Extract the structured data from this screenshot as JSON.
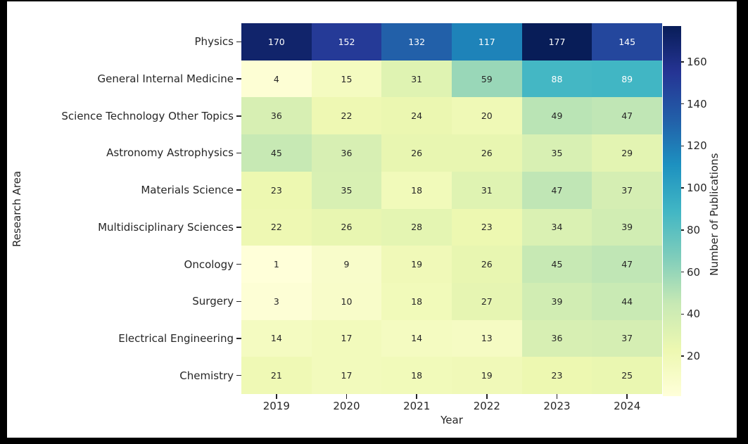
{
  "chart_data": {
    "type": "heatmap",
    "xlabel": "Year",
    "ylabel": "Research Area",
    "colorbar_label": "Number of Publications",
    "x": [
      "2019",
      "2020",
      "2021",
      "2022",
      "2023",
      "2024"
    ],
    "rows": [
      "Physics",
      "General Internal Medicine",
      "Science Technology Other Topics",
      "Astronomy Astrophysics",
      "Materials Science",
      "Multidisciplinary Sciences",
      "Oncology",
      "Surgery",
      "Electrical Engineering",
      "Chemistry"
    ],
    "series": [
      {
        "name": "Physics",
        "values": [
          170,
          152,
          132,
          117,
          177,
          145
        ]
      },
      {
        "name": "General Internal Medicine",
        "values": [
          4,
          15,
          31,
          59,
          88,
          89
        ]
      },
      {
        "name": "Science Technology Other Topics",
        "values": [
          36,
          22,
          24,
          20,
          49,
          47
        ]
      },
      {
        "name": "Astronomy Astrophysics",
        "values": [
          45,
          36,
          26,
          26,
          35,
          29
        ]
      },
      {
        "name": "Materials Science",
        "values": [
          23,
          35,
          18,
          31,
          47,
          37
        ]
      },
      {
        "name": "Multidisciplinary Sciences",
        "values": [
          22,
          26,
          28,
          23,
          34,
          39
        ]
      },
      {
        "name": "Oncology",
        "values": [
          1,
          9,
          19,
          26,
          45,
          47
        ]
      },
      {
        "name": "Surgery",
        "values": [
          3,
          10,
          18,
          27,
          39,
          44
        ]
      },
      {
        "name": "Electrical Engineering",
        "values": [
          14,
          17,
          14,
          13,
          36,
          37
        ]
      },
      {
        "name": "Chemistry",
        "values": [
          21,
          17,
          18,
          19,
          23,
          25
        ]
      }
    ],
    "vmin": 1,
    "vmax": 177,
    "annotated": true,
    "grid": false,
    "colormap_name": "YlGnBu",
    "colorbar_ticks": [
      20,
      40,
      60,
      80,
      100,
      120,
      140,
      160
    ],
    "colorbar_position": "right"
  },
  "colors": {
    "page_background": "#000000",
    "figure_background": "#ffffff",
    "annotation_dark": "#262626",
    "annotation_light": "#ffffff",
    "tick_color": "#262626",
    "colormap_anchors": [
      "#ffffd9",
      "#edf8b1",
      "#c7e9b4",
      "#7fcdbb",
      "#41b6c4",
      "#1d91c0",
      "#225ea8",
      "#253494",
      "#081d58"
    ]
  }
}
